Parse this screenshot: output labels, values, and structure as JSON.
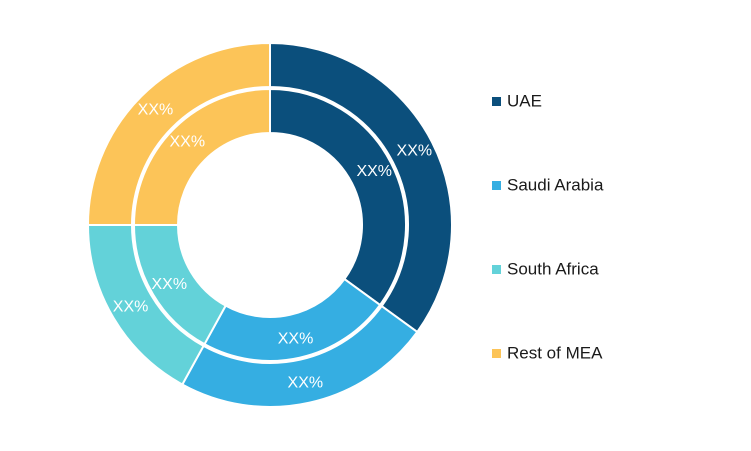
{
  "chart_data": {
    "type": "pie",
    "subtype": "nested-donut",
    "legend_position": "right",
    "series": [
      {
        "ring": "outer",
        "values": [
          35,
          23,
          17,
          25
        ],
        "labels": [
          "XX%",
          "XX%",
          "XX%",
          "XX%"
        ]
      },
      {
        "ring": "inner",
        "values": [
          35,
          23,
          17,
          25
        ],
        "labels": [
          "XX%",
          "XX%",
          "XX%",
          "XX%"
        ]
      }
    ],
    "categories": [
      "UAE",
      "Saudi Arabia",
      "South Africa",
      "Rest of MEA"
    ],
    "colors": [
      "#0b4f7c",
      "#35aee2",
      "#63d2d9",
      "#fcc458"
    ]
  }
}
